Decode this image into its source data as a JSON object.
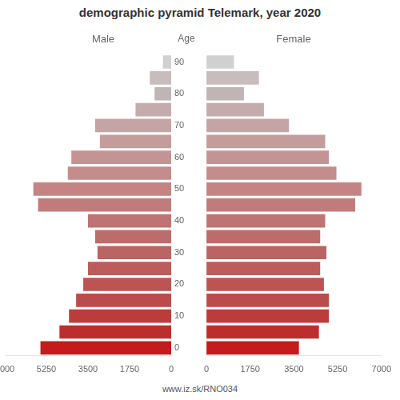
{
  "chart_data": {
    "type": "bar",
    "orientation": "horizontal",
    "title": "demographic pyramid Telemark, year 2020",
    "y_label": "Age",
    "footer": "www.iz.sk/RNO034",
    "categories": [
      90,
      null,
      80,
      null,
      70,
      null,
      60,
      null,
      50,
      null,
      40,
      null,
      30,
      null,
      20,
      null,
      10,
      null,
      0
    ],
    "series": [
      {
        "name": "Male",
        "values": [
          350,
          900,
          700,
          1500,
          3200,
          3000,
          4200,
          4350,
          5800,
          5600,
          3500,
          3200,
          3100,
          3500,
          3700,
          4000,
          4300,
          4700,
          5500
        ],
        "colors": [
          "#d0d0d0",
          "#c8bcbc",
          "#c0b4b4",
          "#c4acac",
          "#c4a4a4",
          "#c49c9c",
          "#c49494",
          "#c48c8c",
          "#c48484",
          "#c07c7c",
          "#be7474",
          "#bc6c6c",
          "#bb6464",
          "#bc5c5c",
          "#bc5454",
          "#bc4c4c",
          "#bc3c3c",
          "#bc2e2e",
          "#c41c1c"
        ]
      },
      {
        "name": "Female",
        "values": [
          1100,
          2100,
          1500,
          2300,
          3300,
          4750,
          4900,
          5200,
          6200,
          5950,
          4750,
          4550,
          4800,
          4550,
          4700,
          4900,
          4900,
          4500,
          3700
        ],
        "colors": [
          "#d0d0d0",
          "#c8bcbc",
          "#c0b4b4",
          "#c4acac",
          "#c4a4a4",
          "#c49c9c",
          "#c49494",
          "#c48c8c",
          "#c48484",
          "#c07c7c",
          "#be7474",
          "#bc6c6c",
          "#bb6464",
          "#bc5c5c",
          "#bc5454",
          "#bc4c4c",
          "#bc3c3c",
          "#bc2e2e",
          "#c41c1c"
        ]
      }
    ],
    "xlim": [
      0,
      7000
    ],
    "xticks": [
      0,
      1750,
      3500,
      5250,
      7000
    ],
    "grid": false
  }
}
